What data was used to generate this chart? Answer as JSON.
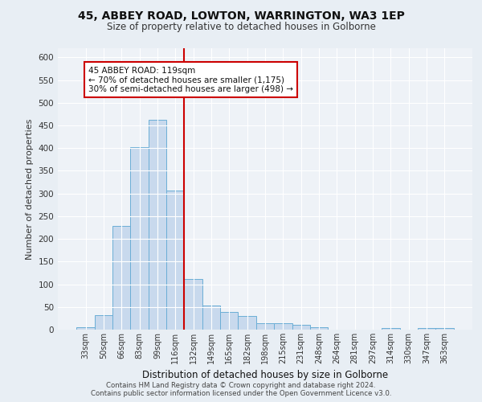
{
  "title1": "45, ABBEY ROAD, LOWTON, WARRINGTON, WA3 1EP",
  "title2": "Size of property relative to detached houses in Golborne",
  "xlabel": "Distribution of detached houses by size in Golborne",
  "ylabel": "Number of detached properties",
  "categories": [
    "33sqm",
    "50sqm",
    "66sqm",
    "83sqm",
    "99sqm",
    "116sqm",
    "132sqm",
    "149sqm",
    "165sqm",
    "182sqm",
    "198sqm",
    "215sqm",
    "231sqm",
    "248sqm",
    "264sqm",
    "281sqm",
    "297sqm",
    "314sqm",
    "330sqm",
    "347sqm",
    "363sqm"
  ],
  "values": [
    5,
    32,
    228,
    403,
    462,
    307,
    112,
    54,
    39,
    30,
    14,
    14,
    10,
    5,
    0,
    0,
    0,
    4,
    0,
    4,
    4
  ],
  "bar_color": "#c8d9ed",
  "bar_edge_color": "#6baed6",
  "vline_color": "#cc0000",
  "vline_x": 5.5,
  "annotation_text": "45 ABBEY ROAD: 119sqm\n← 70% of detached houses are smaller (1,175)\n30% of semi-detached houses are larger (498) →",
  "annotation_box_facecolor": "#ffffff",
  "annotation_box_edgecolor": "#cc0000",
  "footnote1": "Contains HM Land Registry data © Crown copyright and database right 2024.",
  "footnote2": "Contains public sector information licensed under the Open Government Licence v3.0.",
  "bg_color": "#e8eef4",
  "plot_bg_color": "#eef2f7",
  "ylim": [
    0,
    620
  ],
  "yticks": [
    0,
    50,
    100,
    150,
    200,
    250,
    300,
    350,
    400,
    450,
    500,
    550,
    600
  ]
}
